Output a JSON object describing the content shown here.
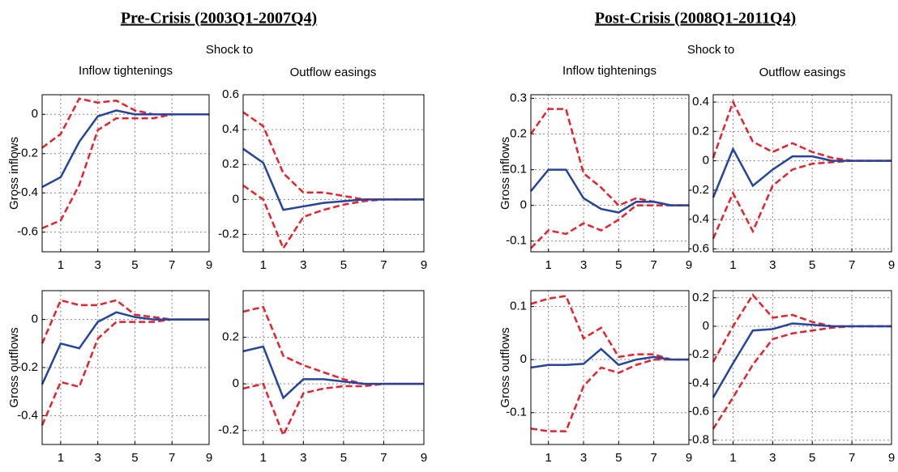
{
  "groups": [
    {
      "title": "Pre-Crisis (2003Q1-2007Q4)",
      "shock_label": "Shock to",
      "columns": [
        "Inflow tightenings",
        "Outflow easings"
      ],
      "rows": [
        "Gross inflows",
        "Gross outflows"
      ]
    },
    {
      "title": "Post-Crisis (2008Q1-2011Q4)",
      "shock_label": "Shock to",
      "columns": [
        "Inflow tightenings",
        "Outflow easings"
      ],
      "rows": [
        "Gross inflows",
        "Gross outflows"
      ]
    }
  ],
  "chart_data": [
    {
      "type": "line",
      "x": [
        0,
        1,
        2,
        3,
        4,
        5,
        6,
        7,
        8,
        9
      ],
      "xlim": [
        0,
        9
      ],
      "xticks": [
        1,
        3,
        5,
        7,
        9
      ],
      "ylim": [
        -0.7,
        0.1
      ],
      "yticks": [
        -0.6,
        -0.4,
        -0.2,
        0
      ],
      "grid": true,
      "series": [
        {
          "color": "#e8212b",
          "style": "dashed",
          "values": [
            -0.17,
            -0.1,
            0.08,
            0.06,
            0.07,
            0.02,
            0,
            0,
            0,
            0
          ]
        },
        {
          "color": "#e8212b",
          "style": "dashed",
          "values": [
            -0.58,
            -0.54,
            -0.36,
            -0.08,
            -0.02,
            -0.02,
            -0.02,
            0,
            0,
            0
          ]
        },
        {
          "color": "#2444a0",
          "style": "solid",
          "values": [
            -0.37,
            -0.32,
            -0.14,
            -0.01,
            0.02,
            0,
            0,
            0,
            0,
            0
          ]
        }
      ]
    },
    {
      "type": "line",
      "x": [
        0,
        1,
        2,
        3,
        4,
        5,
        6,
        7,
        8,
        9
      ],
      "xlim": [
        0,
        9
      ],
      "xticks": [
        1,
        3,
        5,
        7,
        9
      ],
      "ylim": [
        -0.3,
        0.6
      ],
      "yticks": [
        -0.2,
        0,
        0.2,
        0.4,
        0.6
      ],
      "grid": true,
      "series": [
        {
          "color": "#e8212b",
          "style": "dashed",
          "values": [
            0.5,
            0.42,
            0.15,
            0.04,
            0.04,
            0.02,
            0,
            0,
            0,
            0
          ]
        },
        {
          "color": "#e8212b",
          "style": "dashed",
          "values": [
            0.08,
            0,
            -0.28,
            -0.1,
            -0.06,
            -0.03,
            -0.01,
            0,
            0,
            0
          ]
        },
        {
          "color": "#2444a0",
          "style": "solid",
          "values": [
            0.29,
            0.21,
            -0.06,
            -0.04,
            -0.02,
            -0.01,
            0,
            0,
            0,
            0
          ]
        }
      ]
    },
    {
      "type": "line",
      "x": [
        0,
        1,
        2,
        3,
        4,
        5,
        6,
        7,
        8,
        9
      ],
      "xlim": [
        0,
        9
      ],
      "xticks": [
        1,
        3,
        5,
        7,
        9
      ],
      "ylim": [
        -0.52,
        0.12
      ],
      "yticks": [
        -0.4,
        -0.2,
        0
      ],
      "grid": true,
      "series": [
        {
          "color": "#e8212b",
          "style": "dashed",
          "values": [
            -0.1,
            0.08,
            0.06,
            0.06,
            0.08,
            0.02,
            0.01,
            0,
            0,
            0
          ]
        },
        {
          "color": "#e8212b",
          "style": "dashed",
          "values": [
            -0.44,
            -0.26,
            -0.28,
            -0.08,
            -0.01,
            -0.01,
            -0.01,
            0,
            0,
            0
          ]
        },
        {
          "color": "#2444a0",
          "style": "solid",
          "values": [
            -0.27,
            -0.1,
            -0.12,
            -0.01,
            0.03,
            0.01,
            0,
            0,
            0,
            0
          ]
        }
      ]
    },
    {
      "type": "line",
      "x": [
        0,
        1,
        2,
        3,
        4,
        5,
        6,
        7,
        8,
        9
      ],
      "xlim": [
        0,
        9
      ],
      "xticks": [
        1,
        3,
        5,
        7,
        9
      ],
      "ylim": [
        -0.26,
        0.4
      ],
      "yticks": [
        -0.2,
        0,
        0.2
      ],
      "grid": true,
      "series": [
        {
          "color": "#e8212b",
          "style": "dashed",
          "values": [
            0.31,
            0.33,
            0.12,
            0.08,
            0.05,
            0.02,
            0,
            0,
            0,
            0
          ]
        },
        {
          "color": "#e8212b",
          "style": "dashed",
          "values": [
            -0.02,
            0,
            -0.22,
            -0.04,
            -0.02,
            -0.01,
            -0.01,
            0,
            0,
            0
          ]
        },
        {
          "color": "#2444a0",
          "style": "solid",
          "values": [
            0.14,
            0.16,
            -0.06,
            0.02,
            0.02,
            0.01,
            0,
            0,
            0,
            0
          ]
        }
      ]
    },
    {
      "type": "line",
      "x": [
        0,
        1,
        2,
        3,
        4,
        5,
        6,
        7,
        8,
        9
      ],
      "xlim": [
        0,
        9
      ],
      "xticks": [
        1,
        3,
        5,
        7,
        9
      ],
      "ylim": [
        -0.13,
        0.31
      ],
      "yticks": [
        -0.1,
        0,
        0.1,
        0.2,
        0.3
      ],
      "grid": true,
      "series": [
        {
          "color": "#e8212b",
          "style": "dashed",
          "values": [
            0.2,
            0.27,
            0.27,
            0.09,
            0.05,
            0,
            0.02,
            0.01,
            0,
            0
          ]
        },
        {
          "color": "#e8212b",
          "style": "dashed",
          "values": [
            -0.12,
            -0.07,
            -0.08,
            -0.05,
            -0.07,
            -0.04,
            0,
            0,
            0,
            0
          ]
        },
        {
          "color": "#2444a0",
          "style": "solid",
          "values": [
            0.04,
            0.1,
            0.1,
            0.02,
            -0.01,
            -0.02,
            0.01,
            0.01,
            0,
            0
          ]
        }
      ]
    },
    {
      "type": "line",
      "x": [
        0,
        1,
        2,
        3,
        4,
        5,
        6,
        7,
        8,
        9
      ],
      "xlim": [
        0,
        9
      ],
      "xticks": [
        1,
        3,
        5,
        7,
        9
      ],
      "ylim": [
        -0.62,
        0.45
      ],
      "yticks": [
        -0.6,
        -0.4,
        -0.2,
        0,
        0.2,
        0.4
      ],
      "grid": true,
      "series": [
        {
          "color": "#e8212b",
          "style": "dashed",
          "values": [
            0.02,
            0.4,
            0.13,
            0.06,
            0.12,
            0.06,
            0.02,
            0,
            0,
            0
          ]
        },
        {
          "color": "#e8212b",
          "style": "dashed",
          "values": [
            -0.53,
            -0.22,
            -0.48,
            -0.17,
            -0.06,
            -0.02,
            -0.01,
            0,
            0,
            0
          ]
        },
        {
          "color": "#2444a0",
          "style": "solid",
          "values": [
            -0.25,
            0.08,
            -0.17,
            -0.06,
            0.03,
            0.03,
            0,
            0,
            0,
            0
          ]
        }
      ]
    },
    {
      "type": "line",
      "x": [
        0,
        1,
        2,
        3,
        4,
        5,
        6,
        7,
        8,
        9
      ],
      "xlim": [
        0,
        9
      ],
      "xticks": [
        1,
        3,
        5,
        7,
        9
      ],
      "ylim": [
        -0.16,
        0.13
      ],
      "yticks": [
        -0.1,
        0,
        0.1
      ],
      "grid": true,
      "series": [
        {
          "color": "#e8212b",
          "style": "dashed",
          "values": [
            0.105,
            0.115,
            0.12,
            0.04,
            0.06,
            0.005,
            0.01,
            0.01,
            0,
            0
          ]
        },
        {
          "color": "#e8212b",
          "style": "dashed",
          "values": [
            -0.13,
            -0.135,
            -0.135,
            -0.05,
            -0.015,
            -0.025,
            -0.01,
            0,
            0,
            0
          ]
        },
        {
          "color": "#2444a0",
          "style": "solid",
          "values": [
            -0.015,
            -0.01,
            -0.01,
            -0.008,
            0.02,
            -0.01,
            0,
            0.005,
            0,
            0
          ]
        }
      ]
    },
    {
      "type": "line",
      "x": [
        0,
        1,
        2,
        3,
        4,
        5,
        6,
        7,
        8,
        9
      ],
      "xlim": [
        0,
        9
      ],
      "xticks": [
        1,
        3,
        5,
        7,
        9
      ],
      "ylim": [
        -0.83,
        0.25
      ],
      "yticks": [
        -0.8,
        -0.6,
        -0.4,
        -0.2,
        0,
        0.2
      ],
      "grid": true,
      "series": [
        {
          "color": "#e8212b",
          "style": "dashed",
          "values": [
            -0.25,
            0,
            0.22,
            0.06,
            0.08,
            0.03,
            0,
            0,
            0,
            0
          ]
        },
        {
          "color": "#e8212b",
          "style": "dashed",
          "values": [
            -0.72,
            -0.5,
            -0.27,
            -0.09,
            -0.05,
            -0.03,
            -0.01,
            0,
            0,
            0
          ]
        },
        {
          "color": "#2444a0",
          "style": "solid",
          "values": [
            -0.5,
            -0.26,
            -0.03,
            -0.02,
            0.02,
            0.01,
            0,
            0,
            0,
            0
          ]
        }
      ]
    }
  ]
}
